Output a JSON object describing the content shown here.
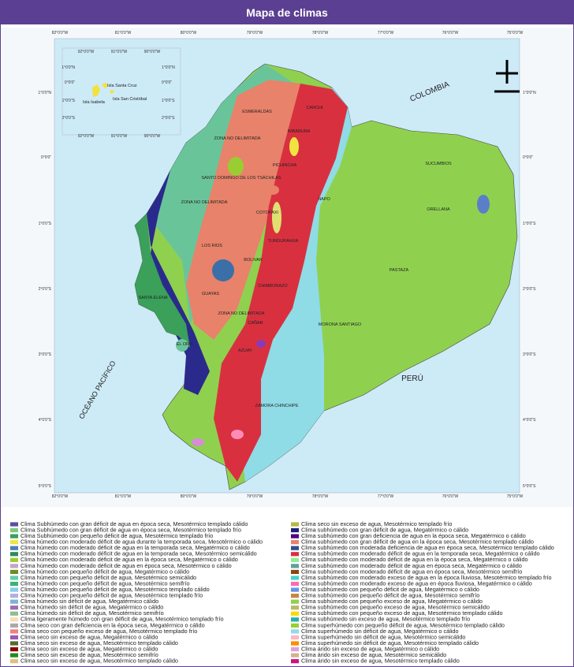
{
  "header": {
    "title": "Mapa de climas"
  },
  "map": {
    "longitude_labels": [
      "82°0'0\"W",
      "81°0'0\"W",
      "80°0'0\"W",
      "79°0'0\"W",
      "78°0'0\"W",
      "77°0'0\"W",
      "76°0'0\"W",
      "75°0'0\"W"
    ],
    "latitude_labels": [
      "1°0'0\"N",
      "0°0'0\"",
      "1°0'0\"S",
      "2°0'0\"S",
      "3°0'0\"S",
      "4°0'0\"S",
      "5°0'0\"S"
    ],
    "inset": {
      "longitude_labels": [
        "92°0'0\"W",
        "91°0'0\"W",
        "90°0'0\"W"
      ],
      "latitude_labels": [
        "1°0'0\"N",
        "0°0'0\"",
        "1°0'0\"S",
        "2°0'0\"S"
      ],
      "islands": [
        "Isla Santa Cruz",
        "Isla San Cristóbal",
        "Isla Isabela"
      ]
    },
    "countries": [
      "COLOMBIA",
      "PERÚ"
    ],
    "ocean": "OCÉANO PACÍFICO",
    "provinces": [
      "ESMERALDAS",
      "CARCHI",
      "IMBABURA",
      "ZONA NO DELIMITADA",
      "PICHINCHA",
      "SANTO DOMINGO DE LOS TSÁCHILAS",
      "ZONA NO DELIMITADA",
      "NAPO",
      "COTOPAXI",
      "SUCUMBIOS",
      "ORELLANA",
      "TUNGURAHUA",
      "LOS RIOS",
      "BOLIVAR",
      "PASTAZA",
      "CHIMBORAZO",
      "SANTA ELENA",
      "GUAYAS",
      "ZONA NO DELIMITADA",
      "CAÑAR",
      "MORONA SANTIAGO",
      "AZUAY",
      "EL ORO",
      "ZAMORA CHINCHIPE"
    ]
  },
  "legend": {
    "left": [
      {
        "label": "Clima Subhúmedo con gran déficit de agua en época seca, Mesotérmico templado cálido",
        "color": "#5b4fa0"
      },
      {
        "label": "Clima Subhúmedo con gran déficit de agua en época seca, Mesotérmico templado frío",
        "color": "#7fc97f"
      },
      {
        "label": "Clima Subhúmedo con pequeño déficit de agua, Mesotérmico templado frío",
        "color": "#3aa05a"
      },
      {
        "label": "Clima húmedo con moderado déficit de agua durante la temporada seca, Mesotérmico o cálido",
        "color": "#f0e442"
      },
      {
        "label": "Clima húmedo con moderado déficit de agua en la temporada seca, Megatérmico o cálido",
        "color": "#4e7fb5"
      },
      {
        "label": "Clima húmedo con moderado déficit de agua en la temporada seca, Mesotérmico semicálido",
        "color": "#2e8b57"
      },
      {
        "label": "Clima húmedo con moderado déficit de agua en la época seca, Megatérmico o cálido",
        "color": "#9acd32"
      },
      {
        "label": "Clima húmedo con moderado déficit de agua en época seca, Mesotérmico o cálido",
        "color": "#c8a2c8"
      },
      {
        "label": "Clima húmedo con pequeño déficit de agua, Megatérmico o cálido",
        "color": "#6b8e23"
      },
      {
        "label": "Clima húmedo con pequeño déficit de agua, Mesotérmico semicálido",
        "color": "#66cdaa"
      },
      {
        "label": "Clima húmedo con pequeño déficit de agua, Mesotérmico semifrío",
        "color": "#3cb371"
      },
      {
        "label": "Clima húmedo con pequeño déficit de agua, Mesotérmico templado cálido",
        "color": "#87ceeb"
      },
      {
        "label": "Clima húmedo con pequeño déficit de agua, Mesotérmico templado frío",
        "color": "#b0b0e0"
      },
      {
        "label": "Clima húmedo sin déficit de agua, Megatérmico cálido",
        "color": "#7fb3d5"
      },
      {
        "label": "Clima húmedo sin déficit de agua, Megatérmico o cálido",
        "color": "#a06cb0"
      },
      {
        "label": "Clima húmedo sin déficit de agua, Mesotérmico semifrío",
        "color": "#8fbc8f"
      },
      {
        "label": "Clima ligeramente húmedo con gran déficit de agua, Mesotérmico templado frío",
        "color": "#f5deb3"
      },
      {
        "label": "Clima seco con gran deficiencia en la época seca, Megatérmico o cálido",
        "color": "#a9a9a9"
      },
      {
        "label": "Clima seco con pequeño exceso de agua, Mesotérmico templado frío",
        "color": "#f08080"
      },
      {
        "label": "Clima seco sin exceso de agua, Megatérmico o cálido",
        "color": "#9b59b6"
      },
      {
        "label": "Clima seco sin exceso de agua, Mesotérmico templado cálido",
        "color": "#556b2f"
      },
      {
        "label": "Clima seco sin exceso de agua, Megatérmico o cálido",
        "color": "#8b0000"
      },
      {
        "label": "Clima seco sin exceso de agua, Mesotérmico semifrío",
        "color": "#228b22"
      },
      {
        "label": "Clima seco sin exceso de agua, Mesotérmico templado cálido",
        "color": "#e0c080"
      }
    ],
    "right": [
      {
        "label": "Clima seco sin exceso de agua, Mesotérmico templado frío",
        "color": "#b8b844"
      },
      {
        "label": "Clima subhúmedo con gran déficit de agua, Megatérmico o cálido",
        "color": "#1f1f7a"
      },
      {
        "label": "Clima subhúmedo con gran deficiencia de agua en la época seca, Megatérmico o cálido",
        "color": "#4b0082"
      },
      {
        "label": "Clima subhúmedo con gran déficit de agua en la época seca, Mesotérmico templado cálido",
        "color": "#e8826a"
      },
      {
        "label": "Clima subhúmedo con moderada deficiencia de agua en época seca, Mesotérmico templado cálido",
        "color": "#2f4f8f"
      },
      {
        "label": "Clima subhúmedo con moderado déficit de agua en la temporada seca, Megatérmico o cálido",
        "color": "#d93040"
      },
      {
        "label": "Clima subhúmedo con moderado déficit de agua en la época seca, Megatérmico o cálido",
        "color": "#90ee90"
      },
      {
        "label": "Clima subhúmedo con moderado déficit de agua en época seca, Megatérmico o cálido",
        "color": "#5f9ea0"
      },
      {
        "label": "Clima subhúmedo con moderado déficit de agua en época seca, Mesotérmico semifrío",
        "color": "#8b4513"
      },
      {
        "label": "Clima subhúmedo con moderado exceso de agua en la época lluviosa, Mesotérmico templado frío",
        "color": "#48d1cc"
      },
      {
        "label": "Clima subhúmedo con moderado exceso de agua en época lluviosa, Megatérmico o cálido",
        "color": "#ff69b4"
      },
      {
        "label": "Clima subhúmedo con pequeño déficit de agua, Megatérmico o cálido",
        "color": "#6495ed"
      },
      {
        "label": "Clima subhúmedo con pequeño déficit de agua, Mesotérmico semifrío",
        "color": "#cd853f"
      },
      {
        "label": "Clima subhúmedo con pequeño exceso de agua, Megatérmico o cálido",
        "color": "#8fd14f"
      },
      {
        "label": "Clima subhúmedo con pequeño exceso de agua, Mesotérmico semicálido",
        "color": "#bdb76b"
      },
      {
        "label": "Clima subhúmedo con pequeño exceso de agua, Mesotérmico templado cálido",
        "color": "#ffd700"
      },
      {
        "label": "Clima subhúmedo sin exceso de agua, Mesotérmico templado frío",
        "color": "#20b2aa"
      },
      {
        "label": "Clima superhúmedo con pequeño déficit de agua, Mesotérmico templado cálido",
        "color": "#9acd32"
      },
      {
        "label": "Clima superhúmedo sin déficit de agua, Megatérmico o cálido",
        "color": "#8fdbe6"
      },
      {
        "label": "Clima superhúmedo sin déficit de agua, Mesotérmico semicálido",
        "color": "#ffb6c1"
      },
      {
        "label": "Clima superhúmedo sin déficit de agua, Mesotérmico templado cálido",
        "color": "#ff8c00"
      },
      {
        "label": "Clima árido sin exceso de agua, Megatérmico o cálido",
        "color": "#dda0dd"
      },
      {
        "label": "Clima árido sin exceso de agua, Mesotérmico semicálido",
        "color": "#d2b48c"
      },
      {
        "label": "Clima árido sin exceso de agua, Mesotérmico templado cálido",
        "color": "#c71585"
      }
    ]
  }
}
